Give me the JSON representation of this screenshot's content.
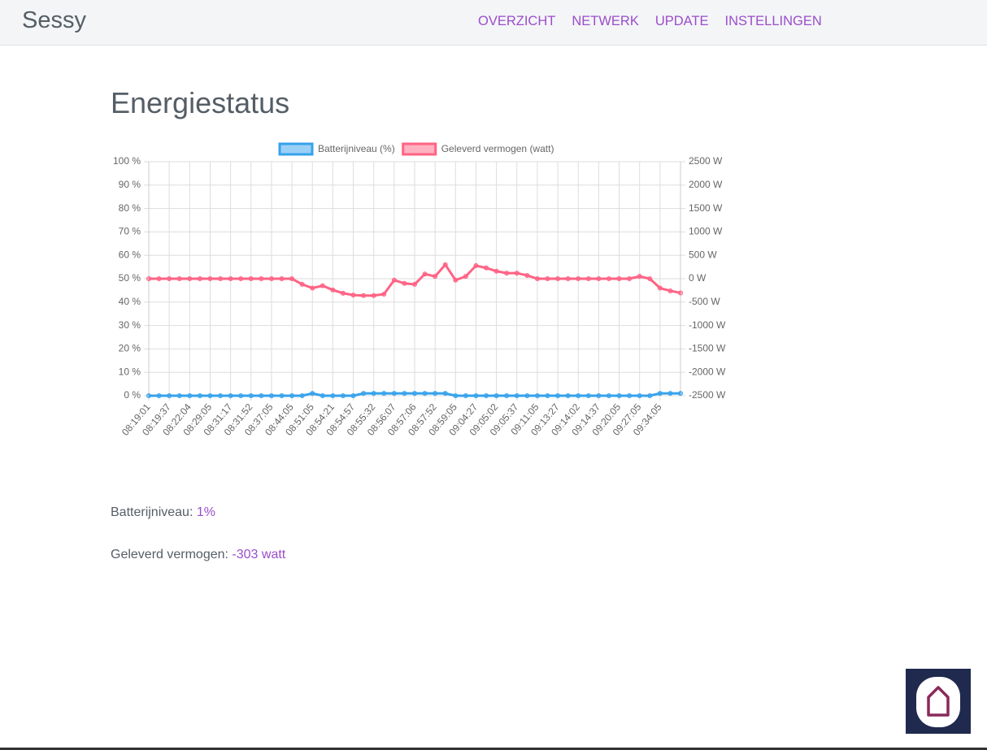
{
  "navbar": {
    "brand": "Sessy",
    "links": [
      "OVERZICHT",
      "NETWERK",
      "UPDATE",
      "INSTELLINGEN"
    ]
  },
  "heading": "Energiestatus",
  "chart_data": {
    "type": "line",
    "categories": [
      "08:19:01",
      null,
      "08:19:37",
      null,
      "08:22:04",
      null,
      "08:29:05",
      null,
      "08:31:17",
      null,
      "08:31:52",
      null,
      "08:37:05",
      null,
      "08:44:05",
      null,
      "08:51:05",
      null,
      "08:54:21",
      null,
      "08:54:57",
      null,
      "08:55:32",
      null,
      "08:56:07",
      null,
      "08:57:06",
      null,
      "08:57:52",
      null,
      "08:59:05",
      null,
      "09:04:27",
      null,
      "09:05:02",
      null,
      "09:05:37",
      null,
      "09:11:05",
      null,
      "09:13:27",
      null,
      "09:14:02",
      null,
      "09:14:37",
      null,
      "09:20:05",
      null,
      "09:27:05",
      null,
      "09:34:05",
      null,
      null
    ],
    "series": [
      {
        "name": "Batterijniveau (%)",
        "color": "#36a2eb",
        "axis": "y",
        "values": [
          0,
          0,
          0,
          0,
          0,
          0,
          0,
          0,
          0,
          0,
          0,
          0,
          0,
          0,
          0,
          0,
          1,
          0,
          0,
          0,
          0,
          1,
          1,
          1,
          1,
          1,
          1,
          1,
          1,
          1,
          0,
          0,
          0,
          0,
          0,
          0,
          0,
          0,
          0,
          0,
          0,
          0,
          0,
          0,
          0,
          0,
          0,
          0,
          0,
          0,
          1,
          1,
          1
        ]
      },
      {
        "name": "Geleverd vermogen (watt)",
        "color": "#ff6384",
        "axis": "y2",
        "values": [
          0,
          0,
          0,
          0,
          0,
          0,
          0,
          0,
          0,
          0,
          0,
          0,
          0,
          0,
          0,
          -120,
          -200,
          -150,
          -240,
          -310,
          -350,
          -360,
          -360,
          -330,
          -30,
          -100,
          -120,
          100,
          50,
          300,
          -30,
          50,
          280,
          230,
          160,
          120,
          120,
          70,
          0,
          0,
          0,
          0,
          0,
          0,
          0,
          0,
          0,
          0,
          50,
          0,
          -200,
          -260,
          -303
        ]
      }
    ],
    "ylim": [
      0,
      100
    ],
    "yticks": [
      {
        "value": 0,
        "label": "0 %"
      },
      {
        "value": 10,
        "label": "10 %"
      },
      {
        "value": 20,
        "label": "20 %"
      },
      {
        "value": 30,
        "label": "30 %"
      },
      {
        "value": 40,
        "label": "40 %"
      },
      {
        "value": 50,
        "label": "50 %"
      },
      {
        "value": 60,
        "label": "60 %"
      },
      {
        "value": 70,
        "label": "70 %"
      },
      {
        "value": 80,
        "label": "80 %"
      },
      {
        "value": 90,
        "label": "90 %"
      },
      {
        "value": 100,
        "label": "100 %"
      }
    ],
    "y2lim": [
      -2500,
      2500
    ],
    "y2ticks": [
      {
        "value": -2500,
        "label": "-2500 W"
      },
      {
        "value": -2000,
        "label": "-2000 W"
      },
      {
        "value": -1500,
        "label": "-1500 W"
      },
      {
        "value": -1000,
        "label": "-1000 W"
      },
      {
        "value": -500,
        "label": "-500 W"
      },
      {
        "value": 0,
        "label": "0 W"
      },
      {
        "value": 500,
        "label": "500 W"
      },
      {
        "value": 1000,
        "label": "1000 W"
      },
      {
        "value": 1500,
        "label": "1500 W"
      },
      {
        "value": 2000,
        "label": "2000 W"
      },
      {
        "value": 2500,
        "label": "2500 W"
      }
    ],
    "grid": true,
    "legend": "top"
  },
  "status": [
    {
      "label": "Batterijniveau:",
      "value": "1%"
    },
    {
      "label": "Geleverd vermogen:",
      "value": "-303 watt"
    }
  ]
}
